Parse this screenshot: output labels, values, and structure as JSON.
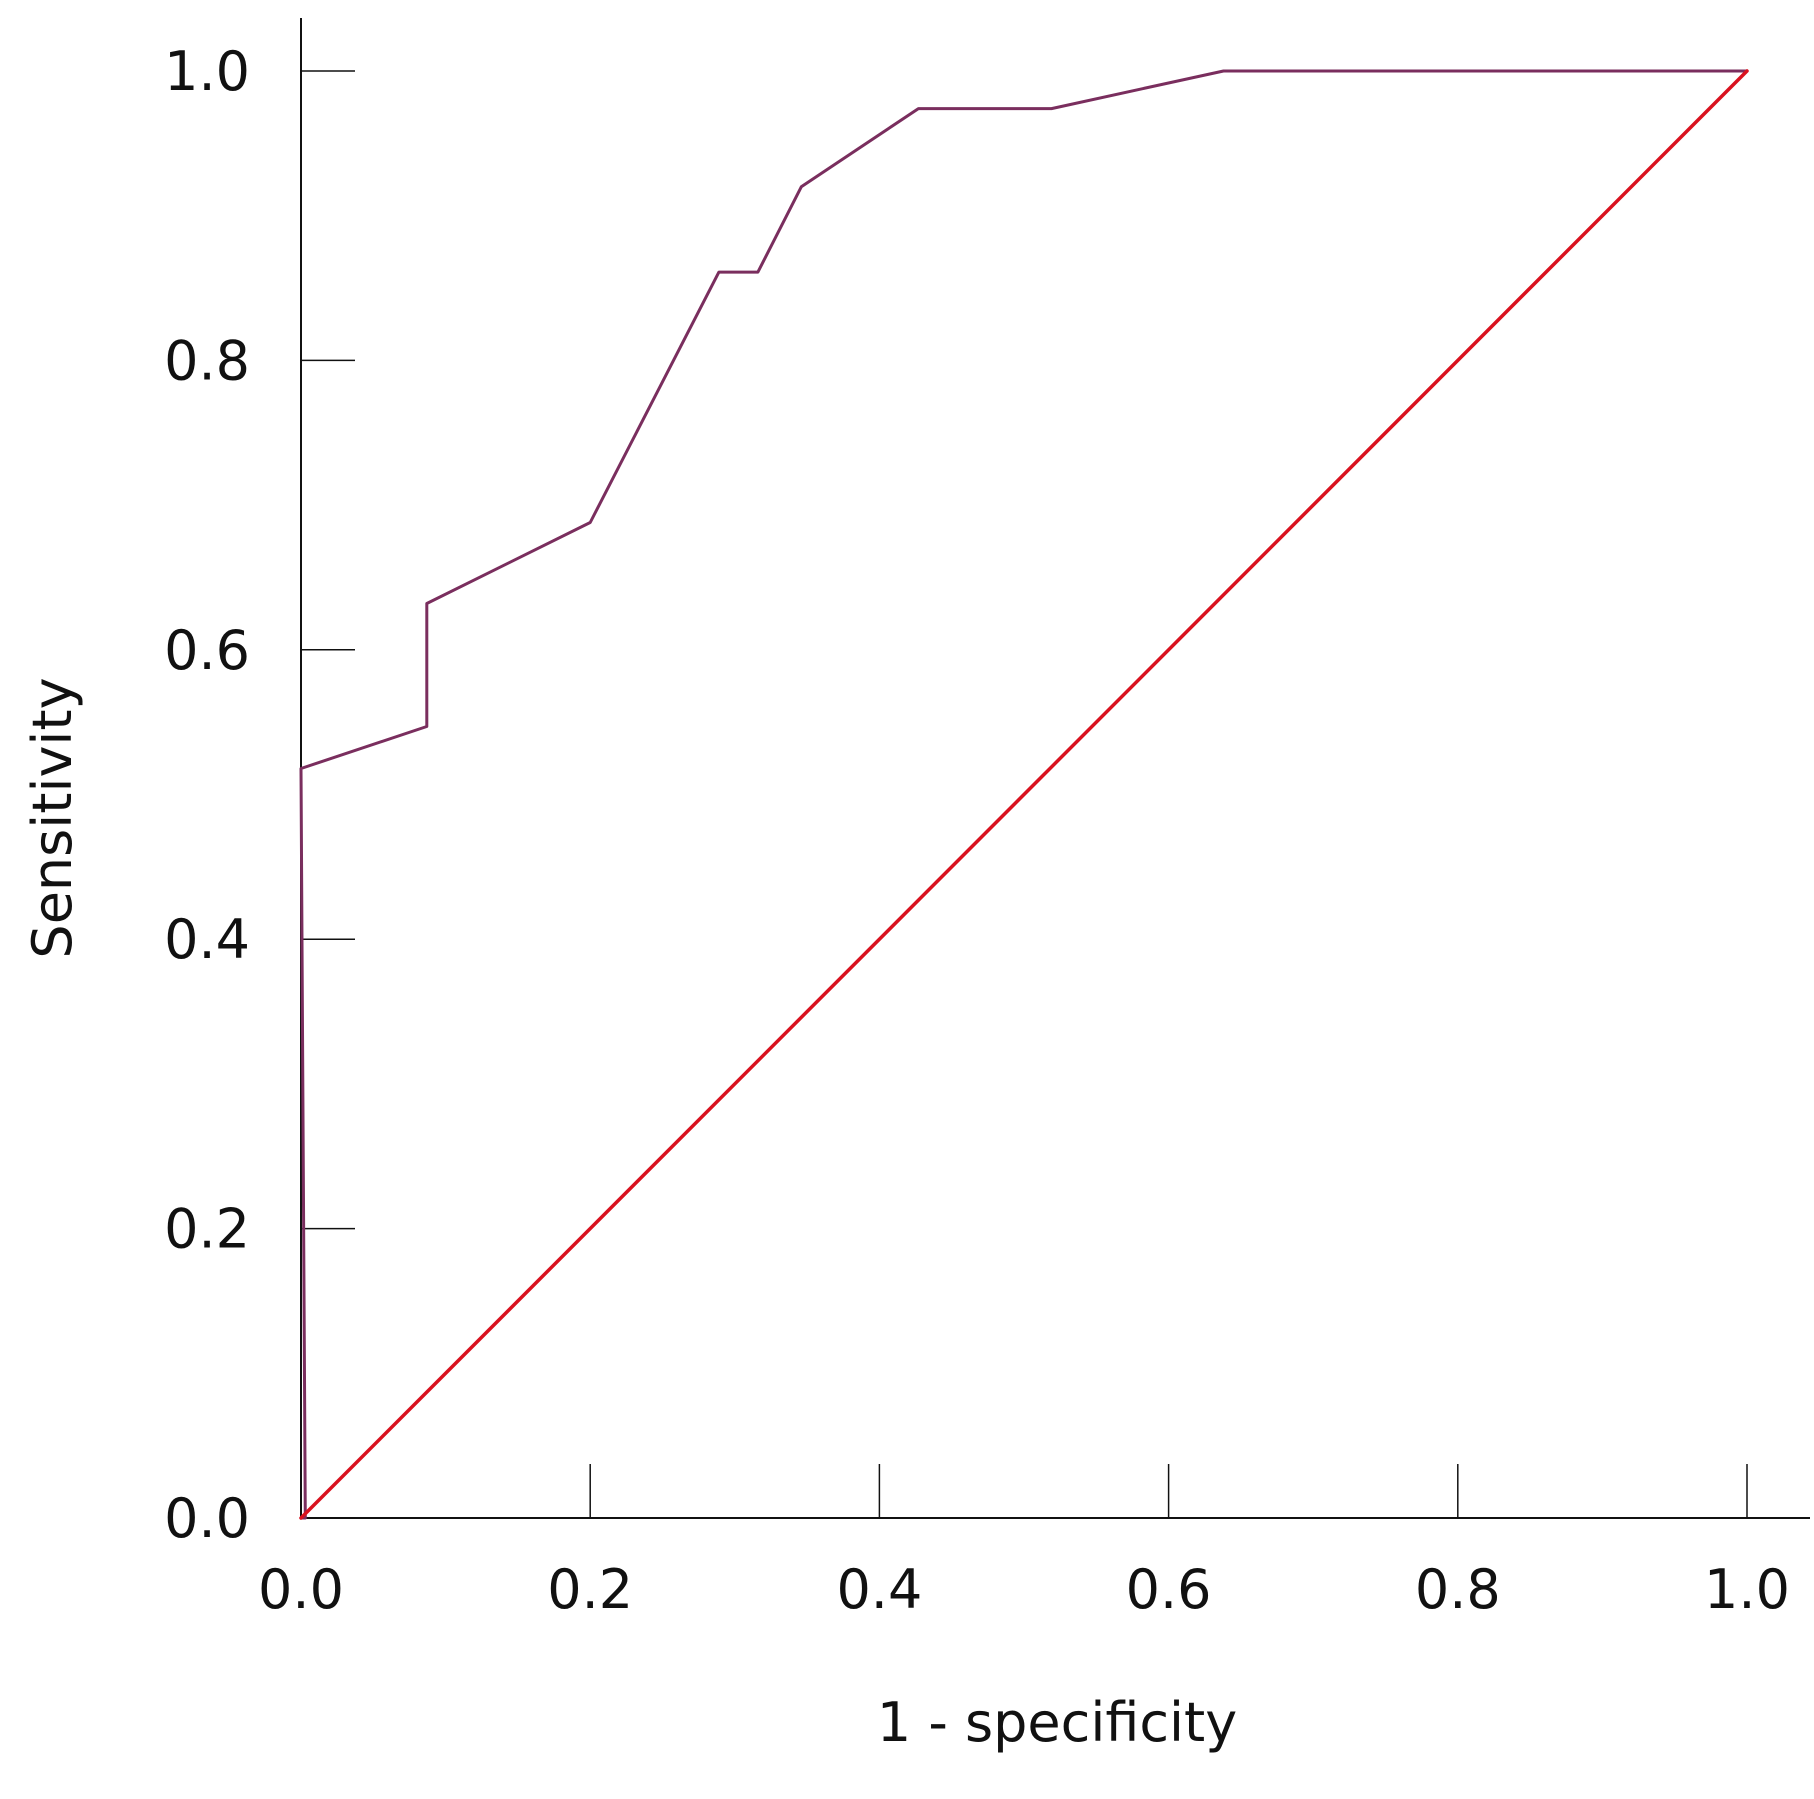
{
  "chart_data": {
    "type": "line",
    "title": "",
    "xlabel": "1 - specificity",
    "ylabel": "Sensitivity",
    "xlim": [
      0,
      1
    ],
    "ylim": [
      0,
      1
    ],
    "x_ticks": [
      0.0,
      0.2,
      0.4,
      0.6,
      0.8,
      1.0
    ],
    "y_ticks": [
      0.0,
      0.2,
      0.4,
      0.6,
      0.8,
      1.0
    ],
    "x_tick_labels": [
      "0.0",
      "0.2",
      "0.4",
      "0.6",
      "0.8",
      "1.0"
    ],
    "y_tick_labels": [
      "0.0",
      "0.2",
      "0.4",
      "0.6",
      "0.8",
      "1.0"
    ],
    "grid": false,
    "legend": "none",
    "series": [
      {
        "color": "#7a2e5e",
        "x": [
          0.0,
          0.003,
          0.0,
          0.087,
          0.087,
          0.2,
          0.289,
          0.316,
          0.346,
          0.427,
          0.519,
          0.638,
          1.0
        ],
        "y": [
          0.0,
          0.0,
          0.518,
          0.547,
          0.632,
          0.688,
          0.861,
          0.861,
          0.92,
          0.974,
          0.974,
          1.0,
          1.0
        ]
      },
      {
        "color": "#d9121f",
        "x": [
          0.0,
          1.0
        ],
        "y": [
          0.0,
          1.0
        ]
      }
    ]
  }
}
